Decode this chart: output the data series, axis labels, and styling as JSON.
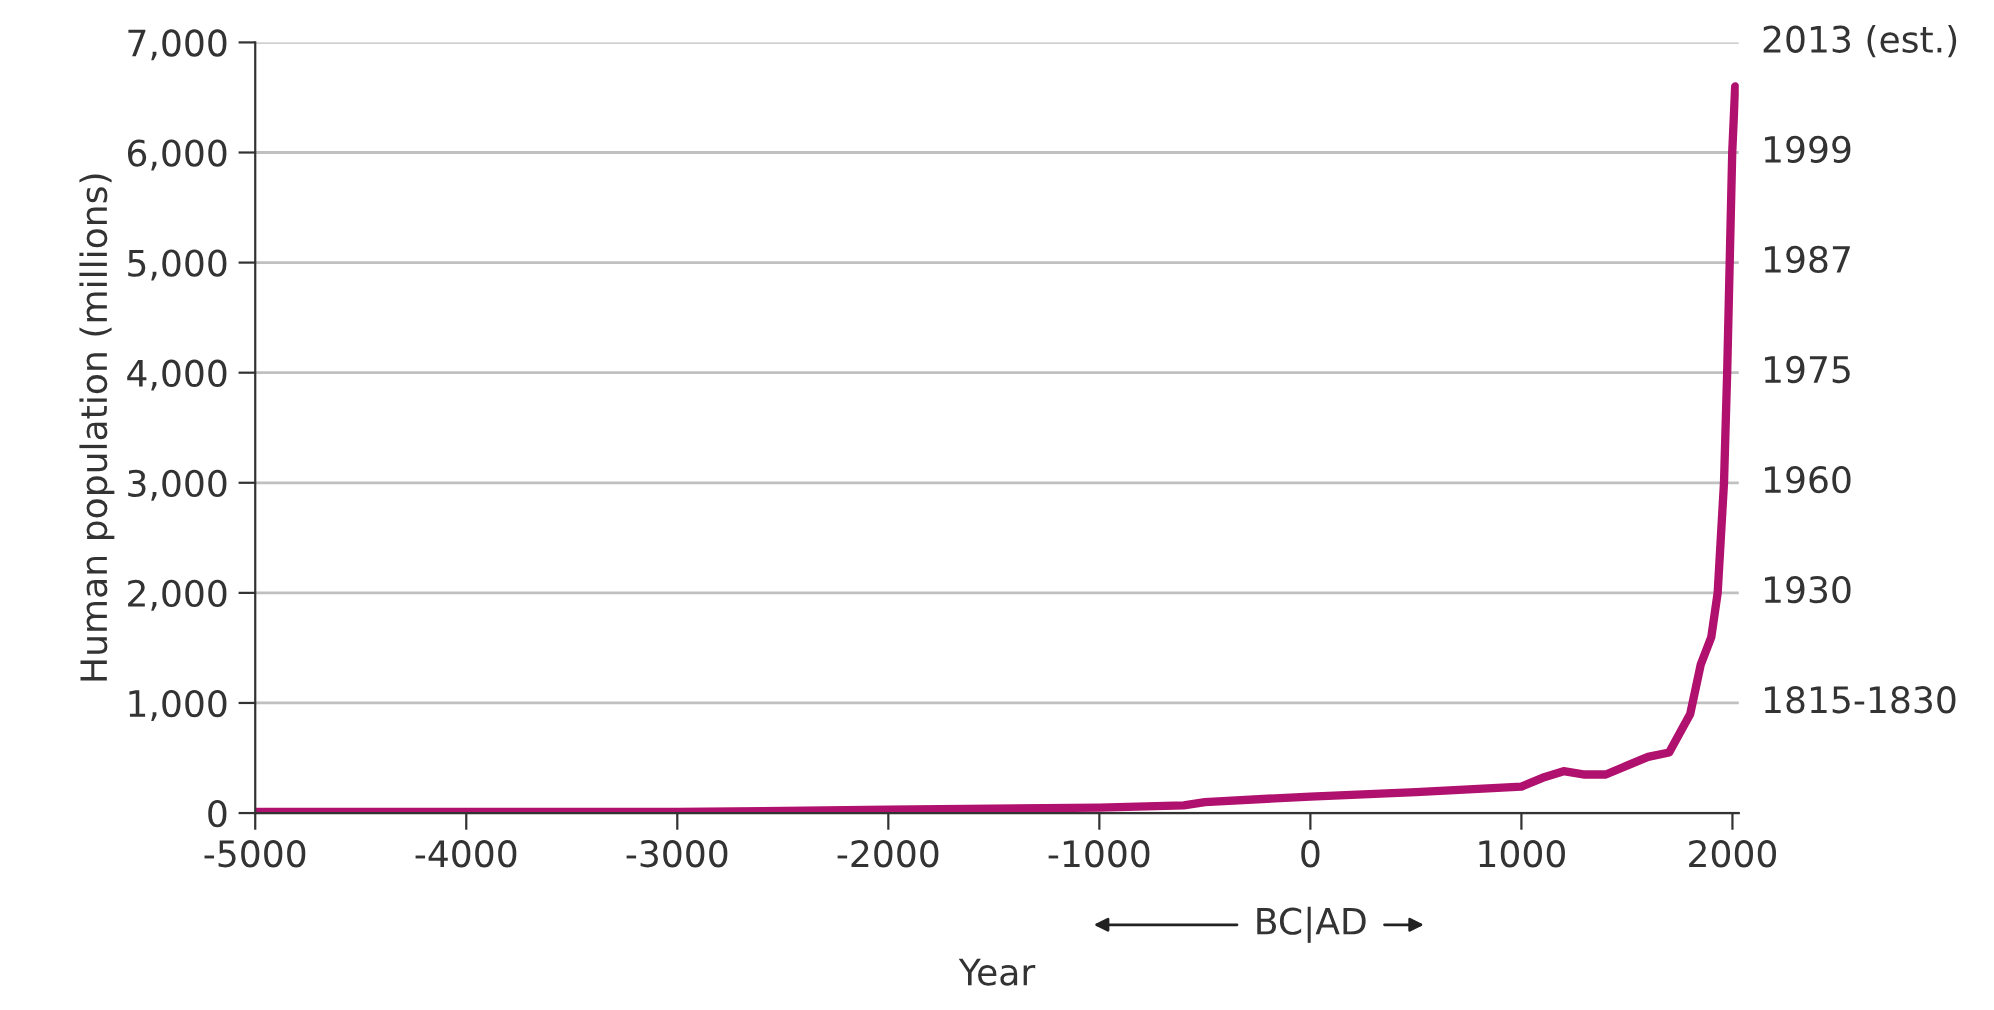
{
  "chart_data": {
    "type": "line",
    "xlabel": "Year",
    "ylabel": "Human population (millions)",
    "x": [
      -5000,
      -4000,
      -3000,
      -2000,
      -1000,
      -600,
      -500,
      0,
      500,
      1000,
      1100,
      1200,
      1300,
      1400,
      1500,
      1600,
      1700,
      1800,
      1850,
      1900,
      1930,
      1960,
      1975,
      1987,
      1999,
      2013
    ],
    "series": [
      {
        "color": "#b0106e",
        "values": [
          10,
          10,
          10,
          30,
          50,
          70,
          100,
          150,
          190,
          240,
          320,
          380,
          350,
          350,
          430,
          510,
          550,
          900,
          1350,
          1600,
          2000,
          3000,
          4000,
          5000,
          6000,
          6600
        ]
      }
    ],
    "xlim": [
      -5000,
      2030
    ],
    "xticks": [
      -5000,
      -4000,
      -3000,
      -2000,
      -1000,
      0,
      1000,
      2000
    ],
    "ylim": [
      0,
      7000
    ],
    "yticks": [
      {
        "value": 0,
        "label": "0"
      },
      {
        "value": 1000,
        "label": "1,000"
      },
      {
        "value": 2000,
        "label": "2,000"
      },
      {
        "value": 3000,
        "label": "3,000"
      },
      {
        "value": 4000,
        "label": "4,000"
      },
      {
        "value": 5000,
        "label": "5,000"
      },
      {
        "value": 6000,
        "label": "6,000"
      },
      {
        "value": 7000,
        "label": "7,000"
      }
    ],
    "grid": "y",
    "line_style": "solid",
    "annotations": [
      "BC|AD",
      "1815-1830",
      "1930",
      "1960",
      "1975",
      "1987",
      "1999",
      "2013 (est.)"
    ]
  }
}
